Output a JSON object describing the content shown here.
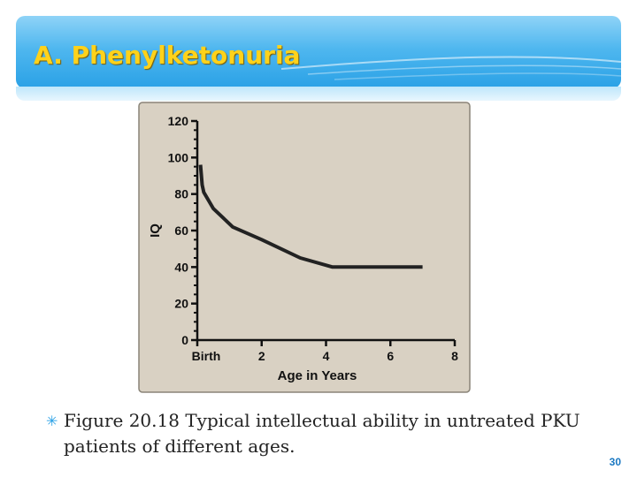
{
  "slide": {
    "title": "A. Phenylketonuria",
    "caption": "Figure 20.18 Typical intellectual ability in untreated PKU patients of different ages.",
    "page_number": "30",
    "accent_color": "#2aa1e6",
    "title_color": "#ffd21a"
  },
  "chart_data": {
    "type": "line",
    "title": "",
    "xlabel": "Age in Years",
    "ylabel": "IQ",
    "xlim": [
      0,
      8
    ],
    "ylim": [
      0,
      120
    ],
    "x_ticks": [
      0,
      2,
      4,
      6,
      8
    ],
    "x_tick_labels": [
      "Birth",
      "2",
      "4",
      "6",
      "8"
    ],
    "y_ticks": [
      0,
      20,
      40,
      60,
      80,
      100,
      120
    ],
    "y_tick_labels": [
      "0",
      "20",
      "40",
      "60",
      "80",
      "100",
      "120"
    ],
    "grid": false,
    "background": "#d9d1c3",
    "series": [
      {
        "name": "",
        "x": [
          0.1,
          0.15,
          0.2,
          0.5,
          1.1,
          2.0,
          3.2,
          4.2,
          5.0,
          6.0,
          7.0
        ],
        "y": [
          96,
          85,
          81,
          72,
          62,
          55,
          45,
          40,
          40,
          40,
          40
        ]
      }
    ]
  }
}
